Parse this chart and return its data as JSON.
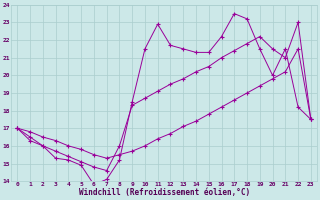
{
  "xlabel": "Windchill (Refroidissement éolien,°C)",
  "background_color": "#cce8e8",
  "grid_color": "#aacece",
  "line_color": "#990099",
  "xlim_min": -0.5,
  "xlim_max": 23.5,
  "ylim_min": 14,
  "ylim_max": 24,
  "yticks": [
    14,
    15,
    16,
    17,
    18,
    19,
    20,
    21,
    22,
    23,
    24
  ],
  "xticks": [
    0,
    1,
    2,
    3,
    4,
    5,
    6,
    7,
    8,
    9,
    10,
    11,
    12,
    13,
    14,
    15,
    16,
    17,
    18,
    19,
    20,
    21,
    22,
    23
  ],
  "line1_x": [
    0,
    1,
    2,
    3,
    4,
    5,
    6,
    7,
    8,
    9,
    10,
    11,
    12,
    13,
    14,
    15,
    16,
    17,
    18,
    19,
    20,
    21,
    22,
    23
  ],
  "line1_y": [
    17.0,
    16.3,
    16.0,
    15.3,
    15.2,
    14.9,
    13.8,
    14.1,
    15.2,
    18.5,
    21.5,
    22.9,
    21.7,
    21.5,
    21.3,
    21.3,
    22.2,
    23.5,
    23.2,
    21.5,
    20.0,
    21.5,
    18.2,
    17.5
  ],
  "line2_x": [
    0,
    1,
    2,
    3,
    4,
    5,
    6,
    7,
    8,
    9,
    10,
    11,
    12,
    13,
    14,
    15,
    16,
    17,
    18,
    19,
    20,
    21,
    22,
    23
  ],
  "line2_y": [
    17.0,
    16.8,
    16.5,
    16.3,
    16.0,
    15.8,
    15.5,
    15.3,
    15.5,
    15.7,
    16.0,
    16.4,
    16.7,
    17.1,
    17.4,
    17.8,
    18.2,
    18.6,
    19.0,
    19.4,
    19.8,
    20.2,
    21.5,
    17.5
  ],
  "line3_x": [
    0,
    1,
    2,
    3,
    4,
    5,
    6,
    7,
    8,
    9,
    10,
    11,
    12,
    13,
    14,
    15,
    16,
    17,
    18,
    19,
    20,
    21,
    22,
    23
  ],
  "line3_y": [
    17.0,
    16.5,
    16.0,
    15.7,
    15.4,
    15.1,
    14.8,
    14.6,
    16.0,
    18.3,
    18.7,
    19.1,
    19.5,
    19.8,
    20.2,
    20.5,
    21.0,
    21.4,
    21.8,
    22.2,
    21.5,
    21.0,
    23.0,
    17.5
  ]
}
